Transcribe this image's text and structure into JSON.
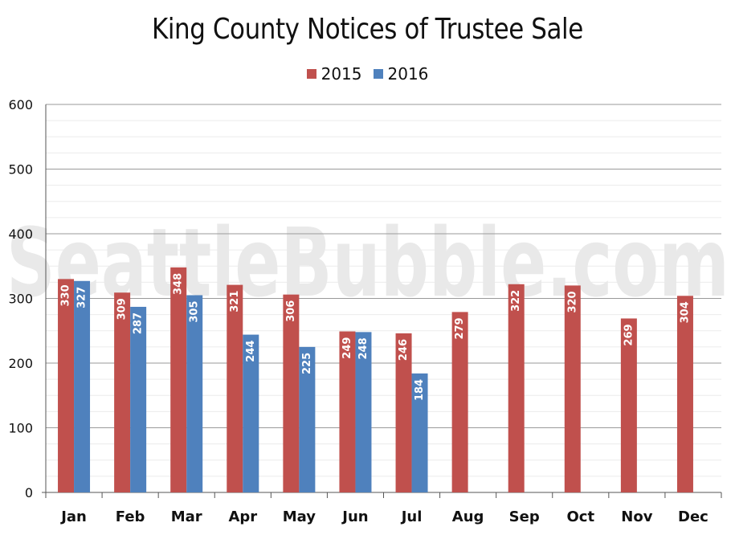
{
  "chart_data": {
    "type": "bar",
    "title": "King County Notices of Trustee Sale",
    "watermark": "SeattleBubble.com",
    "categories": [
      "Jan",
      "Feb",
      "Mar",
      "Apr",
      "May",
      "Jun",
      "Jul",
      "Aug",
      "Sep",
      "Oct",
      "Nov",
      "Dec"
    ],
    "series": [
      {
        "name": "2015",
        "color": "#c0504d",
        "values": [
          330,
          309,
          348,
          321,
          306,
          249,
          246,
          279,
          322,
          320,
          269,
          304
        ]
      },
      {
        "name": "2016",
        "color": "#4f81bd",
        "values": [
          327,
          287,
          305,
          244,
          225,
          248,
          184,
          null,
          null,
          null,
          null,
          null
        ]
      }
    ],
    "ylim": [
      0,
      600
    ],
    "yticks": [
      0,
      100,
      200,
      300,
      400,
      500,
      600
    ],
    "xlabel": "",
    "ylabel": "",
    "grid": true,
    "legend_position": "top-center",
    "data_labels": true
  }
}
